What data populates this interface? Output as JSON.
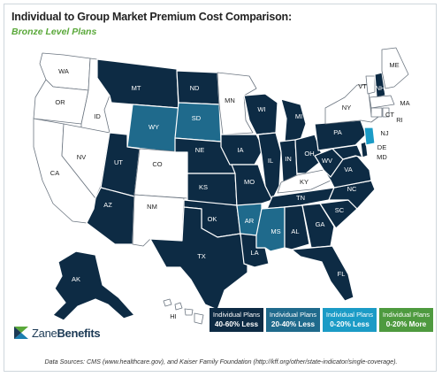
{
  "title": "Individual to Group Market Premium Cost Comparison:",
  "subtitle": "Bronze Level Plans",
  "colors": {
    "c40_60": "#0d2b44",
    "c20_40": "#1f6a8c",
    "c0_20less": "#1b9bc6",
    "c0_20more": "#4e9a3f",
    "none": "#ffffff"
  },
  "legend": [
    {
      "line1": "Individual Plans",
      "line2": "40-60% Less",
      "color": "#0d2b44"
    },
    {
      "line1": "Individual Plans",
      "line2": "20-40% Less",
      "color": "#1f6a8c"
    },
    {
      "line1": "Individual Plans",
      "line2": "0-20% Less",
      "color": "#1b9bc6"
    },
    {
      "line1": "Individual Plans",
      "line2": "0-20% More",
      "color": "#4e9a3f"
    }
  ],
  "states": {
    "WA": "WA",
    "OR": "OR",
    "CA": "CA",
    "NV": "NV",
    "ID": "ID",
    "MT": "MT",
    "WY": "WY",
    "UT": "UT",
    "AZ": "AZ",
    "CO": "CO",
    "NM": "NM",
    "ND": "ND",
    "SD": "SD",
    "NE": "NE",
    "KS": "KS",
    "OK": "OK",
    "TX": "TX",
    "MN": "MN",
    "IA": "IA",
    "MO": "MO",
    "AR": "AR",
    "LA": "LA",
    "WI": "WI",
    "IL": "IL",
    "MS": "MS",
    "MI": "MI",
    "IN": "IN",
    "KY": "KY",
    "TN": "TN",
    "AL": "AL",
    "OH": "OH",
    "GA": "GA",
    "FL": "FL",
    "WV": "WV",
    "VA": "VA",
    "NC": "NC",
    "SC": "SC",
    "PA": "PA",
    "NY": "NY",
    "MD": "MD",
    "DE": "DE",
    "NJ": "NJ",
    "CT": "CT",
    "RI": "RI",
    "MA": "MA",
    "VT": "VT",
    "NH": "NH",
    "ME": "ME",
    "AK": "AK",
    "HI": "HI"
  },
  "logo": {
    "prefix": "Zane",
    "suffix": "Benefits"
  },
  "source": "Data Sources: CMS (www.healthcare.gov), and Kaiser Family Foundation (http://kff.org/other/state-indicator/single-coverage)."
}
